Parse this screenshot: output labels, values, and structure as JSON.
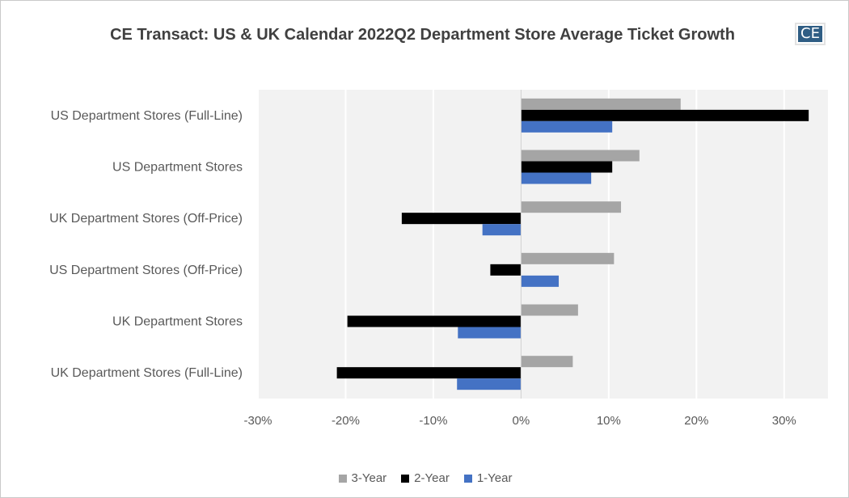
{
  "logo_text": "CE",
  "chart_data": {
    "type": "bar",
    "orientation": "horizontal",
    "title": "CE Transact: US & UK Calendar 2022Q2 Department Store Average Ticket Growth",
    "categories": [
      "US Department Stores (Full-Line)",
      "US Department Stores",
      "UK Department Stores (Off-Price)",
      "US Department Stores (Off-Price)",
      "UK Department Stores",
      "UK Department Stores (Full-Line)"
    ],
    "series": [
      {
        "name": "3-Year",
        "color": "#a5a5a5",
        "values": [
          18.2,
          13.5,
          11.4,
          10.6,
          6.5,
          5.9
        ]
      },
      {
        "name": "2-Year",
        "color": "#000000",
        "values": [
          32.8,
          10.4,
          -13.6,
          -3.5,
          -19.8,
          -21.0
        ]
      },
      {
        "name": "1-Year",
        "color": "#4472c4",
        "values": [
          10.4,
          8.0,
          -4.4,
          4.3,
          -7.2,
          -7.3
        ]
      }
    ],
    "xlim": [
      -30,
      35
    ],
    "xticks": [
      -30,
      -20,
      -10,
      0,
      10,
      20,
      30
    ],
    "xtick_labels": [
      "-30%",
      "-20%",
      "-10%",
      "0%",
      "10%",
      "20%",
      "30%"
    ],
    "grid": true,
    "legend_position": "bottom"
  }
}
